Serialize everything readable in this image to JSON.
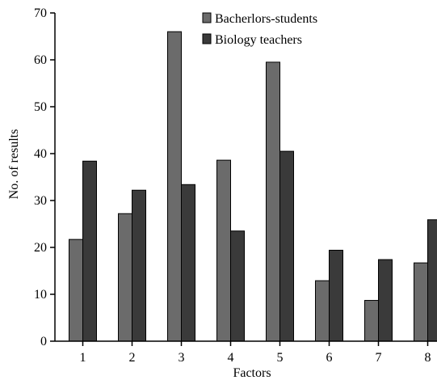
{
  "chart_data": {
    "type": "bar",
    "title": "",
    "xlabel": "Factors",
    "ylabel": "No. of results",
    "categories": [
      "1",
      "2",
      "3",
      "4",
      "5",
      "6",
      "7",
      "8"
    ],
    "ylim": [
      0,
      70
    ],
    "yticks": [
      0,
      10,
      20,
      30,
      40,
      50,
      60,
      70
    ],
    "grid": false,
    "legend_position": "top-center",
    "series": [
      {
        "name": "Bacherlors-students",
        "color": "#6b6b6b",
        "values": [
          21.7,
          27.2,
          66,
          38.6,
          59.5,
          12.9,
          8.7,
          16.7
        ]
      },
      {
        "name": "Biology teachers",
        "color": "#3a3a3a",
        "values": [
          38.4,
          32.2,
          33.4,
          23.5,
          40.5,
          19.4,
          17.4,
          25.9
        ]
      }
    ]
  }
}
